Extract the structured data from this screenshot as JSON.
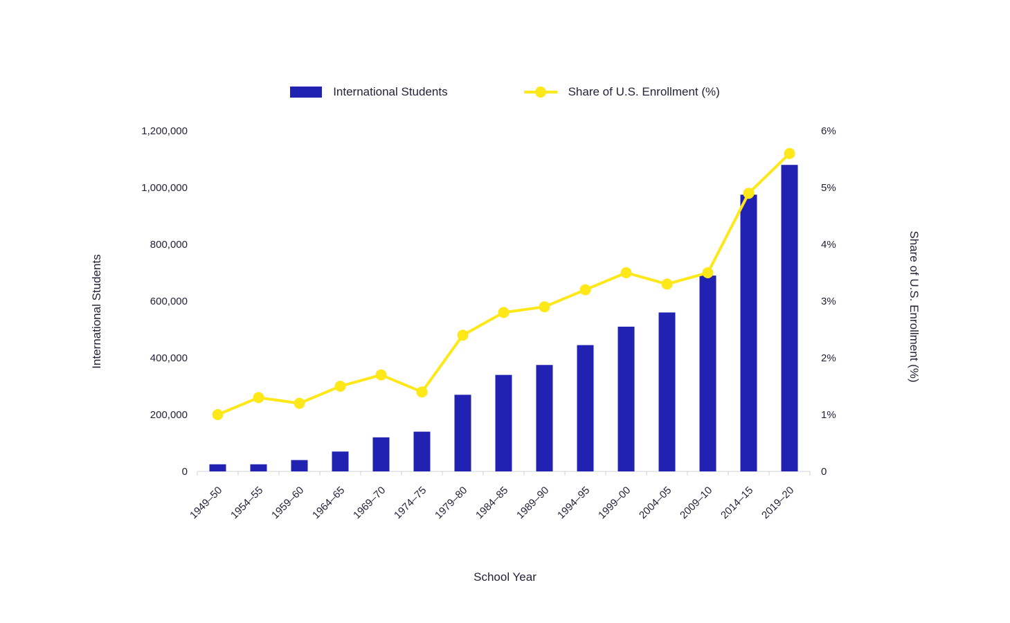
{
  "chart_data": {
    "type": "bar+line combo",
    "categories": [
      "1949–50",
      "1954–55",
      "1959–60",
      "1964–65",
      "1969–70",
      "1974–75",
      "1979–80",
      "1984–85",
      "1989–90",
      "1994–95",
      "1999–00",
      "2004–05",
      "2009–10",
      "2014–15",
      "2019–20"
    ],
    "series": [
      {
        "name": "International Students",
        "type": "bar",
        "axis": "left",
        "values": [
          25000,
          25000,
          40000,
          70000,
          120000,
          140000,
          270000,
          340000,
          375000,
          445000,
          510000,
          560000,
          690000,
          975000,
          1080000
        ]
      },
      {
        "name": "Share of U.S. Enrollment (%)",
        "type": "line",
        "axis": "right",
        "values": [
          1.0,
          1.3,
          1.2,
          1.5,
          1.7,
          1.4,
          2.4,
          2.8,
          2.9,
          3.2,
          3.5,
          3.3,
          3.5,
          4.9,
          5.6
        ]
      }
    ],
    "left_axis": {
      "title": "International Students",
      "max": 1200000,
      "ticks": [
        {
          "value": 0,
          "label": "0"
        },
        {
          "value": 200000,
          "label": "200,000"
        },
        {
          "value": 400000,
          "label": "400,000"
        },
        {
          "value": 600000,
          "label": "600,000"
        },
        {
          "value": 800000,
          "label": "800,000"
        },
        {
          "value": 1000000,
          "label": "1,000,000"
        },
        {
          "value": 1200000,
          "label": "1,200,000"
        }
      ]
    },
    "right_axis": {
      "title": "Share of U.S. Enrollment (%)",
      "max": 6,
      "ticks": [
        {
          "value": 0,
          "label": "0"
        },
        {
          "value": 1,
          "label": "1%"
        },
        {
          "value": 2,
          "label": "2%"
        },
        {
          "value": 3,
          "label": "3%"
        },
        {
          "value": 4,
          "label": "4%"
        },
        {
          "value": 5,
          "label": "5%"
        },
        {
          "value": 6,
          "label": "6%"
        }
      ]
    },
    "xlabel": "School Year",
    "legend_position": "top",
    "grid": "off",
    "colors": {
      "bar": "#2222b2",
      "line": "#ffe81a",
      "text": "#222238",
      "axis": "#cfcfda"
    }
  }
}
